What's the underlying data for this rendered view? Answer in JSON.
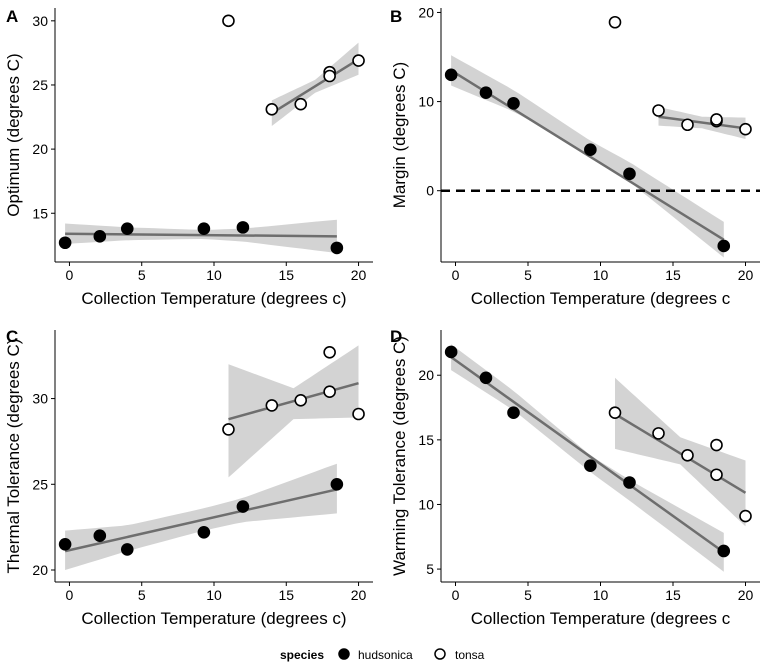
{
  "legend": {
    "title": "species",
    "entries": [
      {
        "label": "hudsonica",
        "marker": "filled-circle"
      },
      {
        "label": "tonsa",
        "marker": "open-circle"
      }
    ]
  },
  "colors": {
    "points": "#000000",
    "fit_line": "#6e6e6e",
    "ribbon": "#d3d3d3",
    "reference_line": "#000000"
  },
  "chart_data": [
    {
      "panel": "A",
      "type": "scatter",
      "xlabel": "Collection Temperature (degrees c)",
      "ylabel": "Optimum (degrees C)",
      "xlim": [
        -1,
        21
      ],
      "ylim": [
        11.2,
        31
      ],
      "xticks": [
        0,
        5,
        10,
        15,
        20
      ],
      "yticks": [
        15,
        20,
        25,
        30
      ],
      "grid": false,
      "series": [
        {
          "name": "hudsonica",
          "marker": "filled",
          "points": [
            [
              -0.3,
              12.7
            ],
            [
              2.1,
              13.2
            ],
            [
              4.0,
              13.8
            ],
            [
              9.3,
              13.8
            ],
            [
              12.0,
              13.9
            ],
            [
              18.5,
              12.3
            ]
          ],
          "fit": {
            "x": [
              -0.3,
              18.5
            ],
            "y": [
              13.4,
              13.2
            ]
          },
          "ribbon": {
            "x": [
              -0.3,
              4.0,
              9.3,
              12.0,
              18.5
            ],
            "lower": [
              12.6,
              12.9,
              13.0,
              12.8,
              11.9
            ],
            "upper": [
              14.2,
              13.9,
              13.7,
              13.8,
              14.5
            ]
          }
        },
        {
          "name": "tonsa",
          "marker": "open",
          "points": [
            [
              11.0,
              30.0
            ],
            [
              14.0,
              23.1
            ],
            [
              16.0,
              23.5
            ],
            [
              18.0,
              26.0
            ],
            [
              18.0,
              25.7
            ],
            [
              20.0,
              26.9
            ]
          ],
          "fit": {
            "x": [
              14.0,
              20.0
            ],
            "y": [
              22.8,
              27.0
            ]
          },
          "ribbon": {
            "x": [
              14.0,
              17.0,
              20.0
            ],
            "lower": [
              21.8,
              24.4,
              25.8
            ],
            "upper": [
              23.8,
              25.4,
              28.3
            ]
          }
        }
      ]
    },
    {
      "panel": "B",
      "type": "scatter",
      "xlabel": "Collection Temperature (degrees c",
      "ylabel": "Margin (degrees C)",
      "xlim": [
        -1,
        21
      ],
      "ylim": [
        -8,
        20.5
      ],
      "xticks": [
        0,
        5,
        10,
        15,
        20
      ],
      "yticks": [
        0,
        10,
        20
      ],
      "reference_line": {
        "y": 0,
        "style": "dashed"
      },
      "grid": false,
      "series": [
        {
          "name": "hudsonica",
          "marker": "filled",
          "points": [
            [
              -0.3,
              13.0
            ],
            [
              2.1,
              11.0
            ],
            [
              4.0,
              9.8
            ],
            [
              9.3,
              4.6
            ],
            [
              12.0,
              1.9
            ],
            [
              18.5,
              -6.2
            ]
          ],
          "fit": {
            "x": [
              -0.3,
              18.5
            ],
            "y": [
              13.5,
              -5.5
            ]
          },
          "ribbon": {
            "x": [
              -0.3,
              4.0,
              9.3,
              12.0,
              18.5
            ],
            "lower": [
              11.8,
              8.9,
              4.0,
              1.0,
              -7.5
            ],
            "upper": [
              15.2,
              11.3,
              5.6,
              3.2,
              -3.5
            ]
          }
        },
        {
          "name": "tonsa",
          "marker": "open",
          "points": [
            [
              11.0,
              18.9
            ],
            [
              14.0,
              9.0
            ],
            [
              16.0,
              7.4
            ],
            [
              18.0,
              7.8
            ],
            [
              18.0,
              8.0
            ],
            [
              20.0,
              6.9
            ]
          ],
          "fit": {
            "x": [
              14.0,
              20.0
            ],
            "y": [
              8.3,
              7.0
            ]
          },
          "ribbon": {
            "x": [
              14.0,
              17.0,
              20.0
            ],
            "lower": [
              7.3,
              7.0,
              5.8
            ],
            "upper": [
              9.4,
              8.3,
              8.2
            ]
          }
        }
      ]
    },
    {
      "panel": "C",
      "type": "scatter",
      "xlabel": "Collection Temperature (degrees c)",
      "ylabel": "Thermal Tolerance (degrees C)",
      "xlim": [
        -1,
        21
      ],
      "ylim": [
        19.3,
        34.0
      ],
      "xticks": [
        0,
        5,
        10,
        15,
        20
      ],
      "yticks": [
        20,
        25,
        30
      ],
      "grid": false,
      "series": [
        {
          "name": "hudsonica",
          "marker": "filled",
          "points": [
            [
              -0.3,
              21.5
            ],
            [
              2.1,
              22.0
            ],
            [
              4.0,
              21.2
            ],
            [
              9.3,
              22.2
            ],
            [
              12.0,
              23.7
            ],
            [
              18.5,
              25.0
            ]
          ],
          "fit": {
            "x": [
              -0.3,
              18.5
            ],
            "y": [
              21.1,
              24.7
            ]
          },
          "ribbon": {
            "x": [
              -0.3,
              4.0,
              9.3,
              12.0,
              18.5
            ],
            "lower": [
              20.0,
              21.1,
              22.3,
              22.8,
              23.3
            ],
            "upper": [
              22.3,
              22.6,
              23.6,
              24.2,
              26.2
            ]
          }
        },
        {
          "name": "tonsa",
          "marker": "open",
          "points": [
            [
              11.0,
              28.2
            ],
            [
              14.0,
              29.6
            ],
            [
              16.0,
              29.9
            ],
            [
              18.0,
              32.7
            ],
            [
              18.0,
              30.4
            ],
            [
              20.0,
              29.1
            ]
          ],
          "fit": {
            "x": [
              11.0,
              20.0
            ],
            "y": [
              28.8,
              30.9
            ]
          },
          "ribbon": {
            "x": [
              11.0,
              15.5,
              20.0
            ],
            "lower": [
              25.4,
              28.8,
              28.9
            ],
            "upper": [
              32.0,
              30.6,
              33.1
            ]
          }
        }
      ]
    },
    {
      "panel": "D",
      "type": "scatter",
      "xlabel": "Collection Temperature (degrees c",
      "ylabel": "Warming Tolerance (degrees C)",
      "xlim": [
        -1,
        21
      ],
      "ylim": [
        4.0,
        23.5
      ],
      "xticks": [
        0,
        5,
        10,
        15,
        20
      ],
      "yticks": [
        5,
        10,
        15,
        20
      ],
      "grid": false,
      "series": [
        {
          "name": "hudsonica",
          "marker": "filled",
          "points": [
            [
              -0.3,
              21.8
            ],
            [
              2.1,
              19.8
            ],
            [
              4.0,
              17.1
            ],
            [
              9.3,
              13.0
            ],
            [
              12.0,
              11.7
            ],
            [
              18.5,
              6.4
            ]
          ],
          "fit": {
            "x": [
              -0.3,
              18.5
            ],
            "y": [
              21.4,
              6.3
            ]
          },
          "ribbon": {
            "x": [
              -0.3,
              4.0,
              9.3,
              12.0,
              18.5
            ],
            "lower": [
              20.4,
              17.3,
              12.5,
              10.3,
              4.8
            ],
            "upper": [
              22.4,
              18.8,
              13.8,
              11.9,
              7.8
            ]
          }
        },
        {
          "name": "tonsa",
          "marker": "open",
          "points": [
            [
              11.0,
              17.1
            ],
            [
              14.0,
              15.5
            ],
            [
              16.0,
              13.8
            ],
            [
              18.0,
              14.6
            ],
            [
              18.0,
              12.3
            ],
            [
              20.0,
              9.1
            ]
          ],
          "fit": {
            "x": [
              11.0,
              20.0
            ],
            "y": [
              17.0,
              10.9
            ]
          },
          "ribbon": {
            "x": [
              11.0,
              15.5,
              20.0
            ],
            "lower": [
              14.3,
              13.1,
              8.3
            ],
            "upper": [
              19.8,
              15.2,
              13.4
            ]
          }
        }
      ]
    }
  ]
}
